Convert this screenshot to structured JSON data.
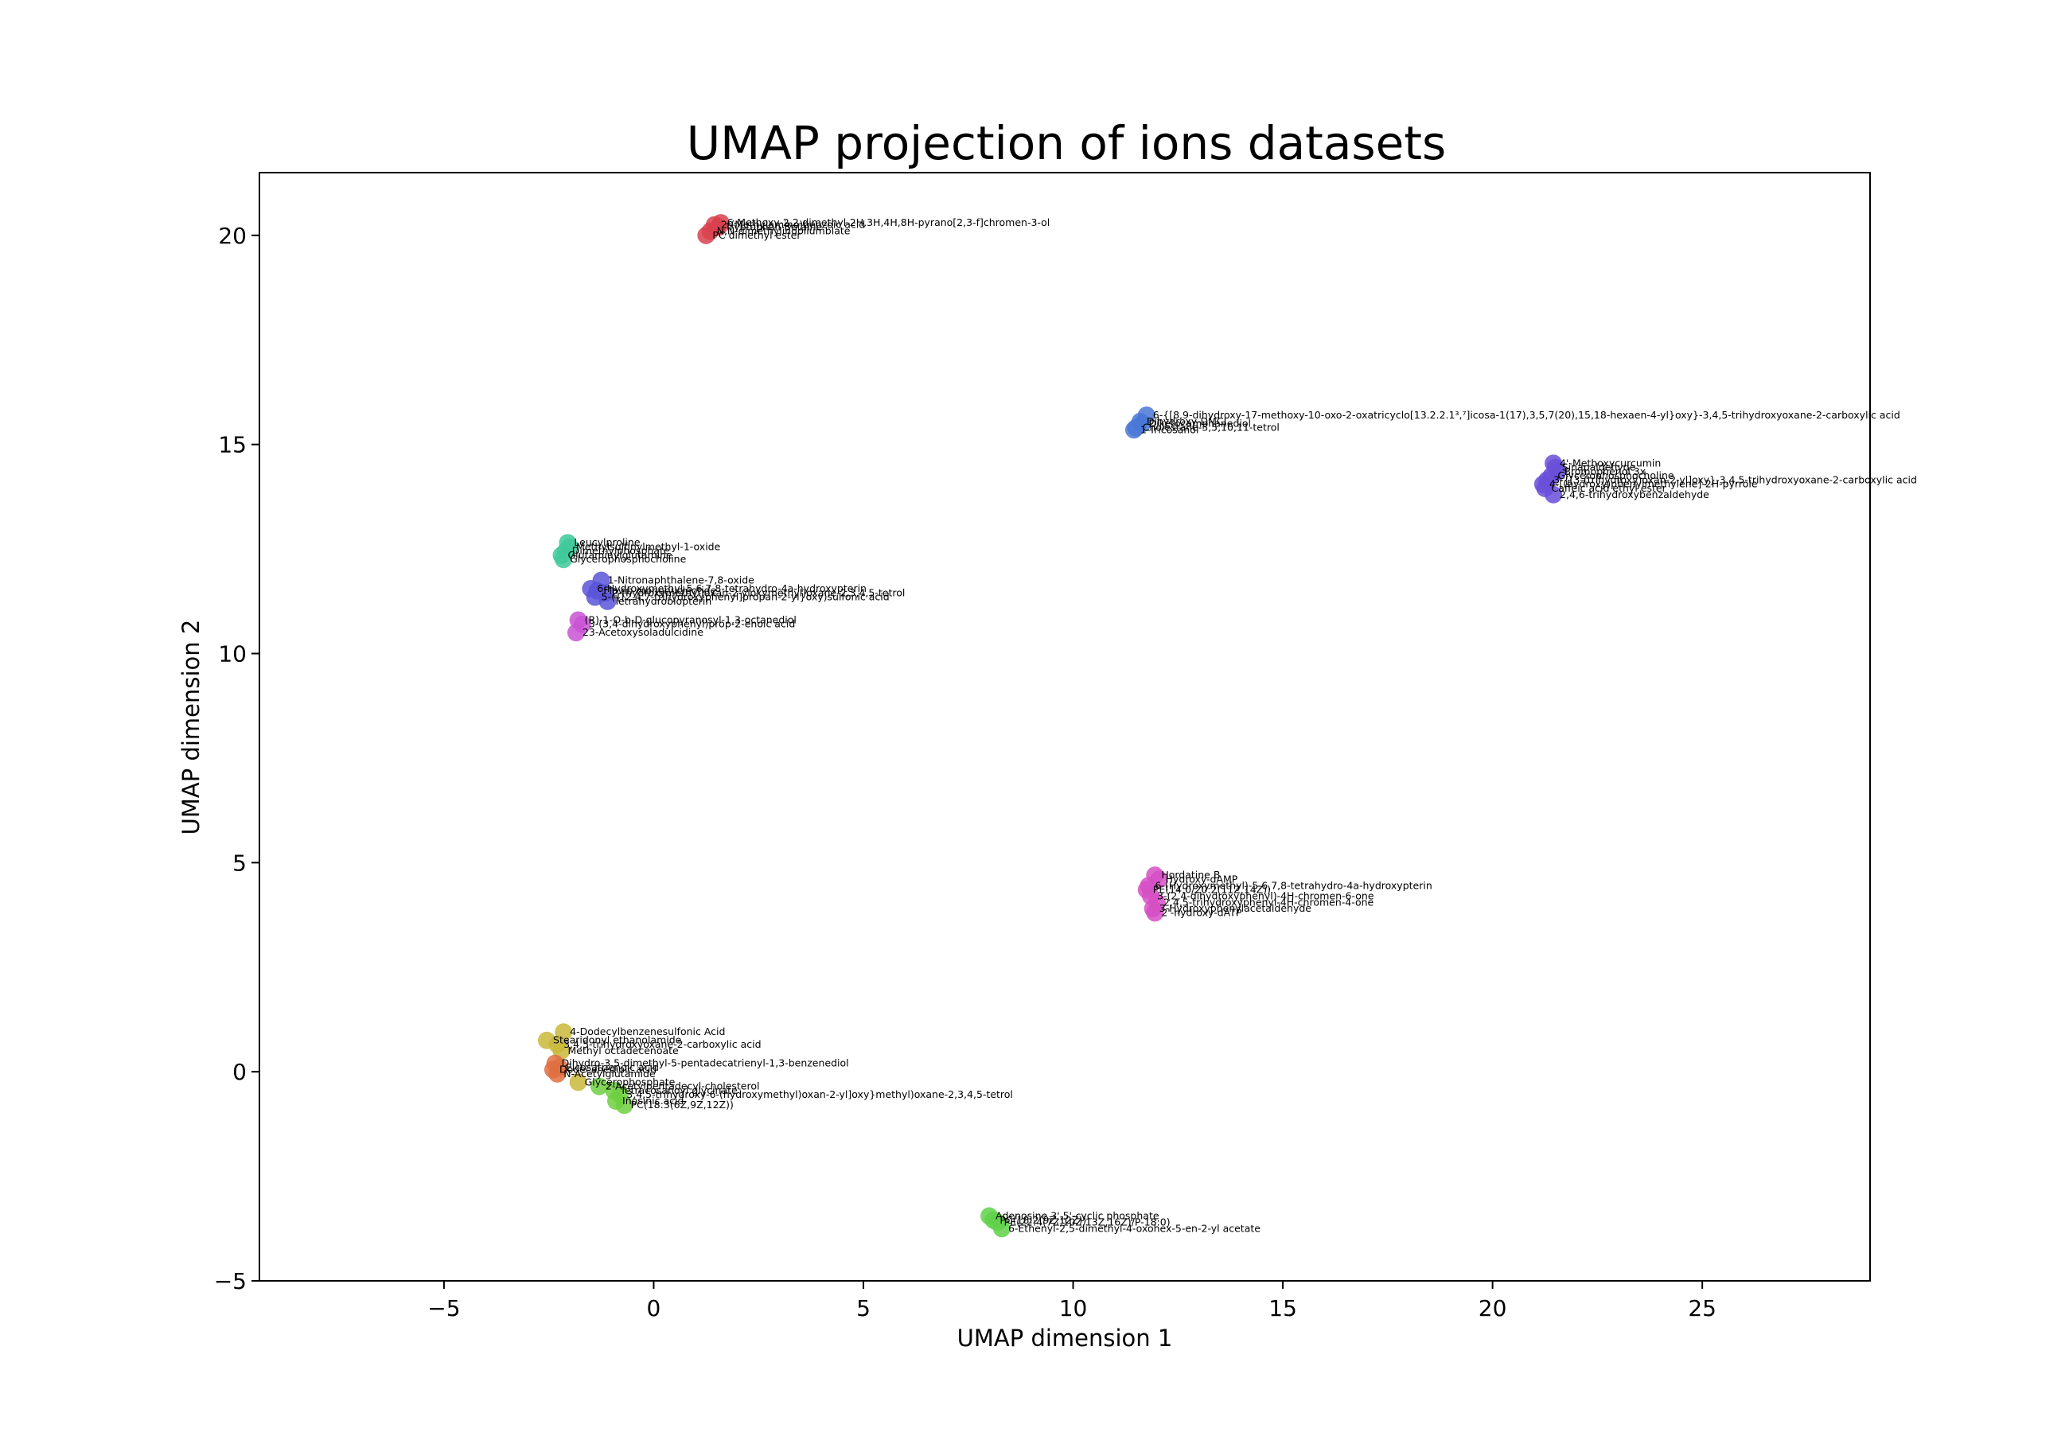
{
  "chart_data": {
    "type": "scatter",
    "title": "UMAP projection of ions datasets",
    "xlabel": "UMAP dimension 1",
    "ylabel": "UMAP dimension 2",
    "xlim": [
      -9.4,
      29.0
    ],
    "ylim": [
      -5.0,
      21.5
    ],
    "xticks": [
      -5,
      0,
      5,
      10,
      15,
      20,
      25
    ],
    "yticks": [
      -5,
      0,
      5,
      10,
      15,
      20
    ],
    "xtick_labels": [
      "−5",
      "0",
      "5",
      "10",
      "15",
      "20",
      "25"
    ],
    "ytick_labels": [
      "−5",
      "0",
      "5",
      "10",
      "15",
      "20"
    ],
    "grid": false,
    "legend": "none",
    "clusters": [
      {
        "color": "#d9414f",
        "points": [
          {
            "x": 1.45,
            "y": 20.25,
            "label": "2-(Methylamino)benzoic acid"
          },
          {
            "x": 1.55,
            "y": 20.2,
            "label": "Tryptophan Betaine"
          },
          {
            "x": 1.6,
            "y": 20.3,
            "label": "6-Methoxy-2,2-dimethyl-2H,3H,4H,8H-pyrano[2,3-f]chromen-3-ol"
          },
          {
            "x": 1.35,
            "y": 20.1,
            "label": "N,N-dimethylindoliumblate"
          },
          {
            "x": 1.25,
            "y": 20.0,
            "label": "PC dimethyl ester"
          }
        ]
      },
      {
        "color": "#4a78d6",
        "points": [
          {
            "x": 11.75,
            "y": 15.7,
            "label": "6-{[8,9-dihydroxy-17-methoxy-10-oxo-2-oxatricyclo[13.2.2.1³,⁷]icosa-1(17),3,5,7(20),15,18-hexaen-4-yl}oxy}-3,4,5-trihydroxyoxane-2-carboxylic acid"
          },
          {
            "x": 11.6,
            "y": 15.55,
            "label": "Dihydroxy-DMCI"
          },
          {
            "x": 11.65,
            "y": 15.5,
            "label": "Diketocamphanediol"
          },
          {
            "x": 11.5,
            "y": 15.4,
            "label": "Cholestane-3,5,10,11-tetrol"
          },
          {
            "x": 11.45,
            "y": 15.35,
            "label": "1-Tricosanol"
          }
        ]
      },
      {
        "color": "#6a4fd9",
        "points": [
          {
            "x": 21.45,
            "y": 14.55,
            "label": "4'-Methoxycurcumin"
          },
          {
            "x": 21.5,
            "y": 14.45,
            "label": "Sinapaldehyde"
          },
          {
            "x": 21.55,
            "y": 14.35,
            "label": "Bromophenol 3x"
          },
          {
            "x": 21.4,
            "y": 14.25,
            "label": "Glycerophosphocholine"
          },
          {
            "x": 21.3,
            "y": 14.15,
            "label": "3-{[3-(trihydroxy)oxan-2-yl]oxy}-3,4,5-trihydroxyoxane-2-carboxylic acid"
          },
          {
            "x": 21.2,
            "y": 14.05,
            "label": "4-[(hydroxy)phenylmethylene]-2H-pyrrole"
          },
          {
            "x": 21.25,
            "y": 13.95,
            "label": "Caffeic acid ethyl ester"
          },
          {
            "x": 21.45,
            "y": 13.8,
            "label": "2,4,6-trihydroxybenzaldehyde"
          }
        ]
      },
      {
        "color": "#3fc99a",
        "points": [
          {
            "x": -2.05,
            "y": 12.65,
            "label": "Leucylproline"
          },
          {
            "x": -2.0,
            "y": 12.55,
            "label": "Methylsulfinylmethyl-1-oxide"
          },
          {
            "x": -2.1,
            "y": 12.45,
            "label": "Dimethylphosphate"
          },
          {
            "x": -2.2,
            "y": 12.35,
            "label": "Glutaminylglutamine"
          },
          {
            "x": -2.15,
            "y": 12.25,
            "label": "Glycerophosphocholine"
          }
        ]
      },
      {
        "color": "#5a55d8",
        "points": [
          {
            "x": -1.25,
            "y": 11.75,
            "label": "1-Nitronaphthalene-7,8-oxide"
          },
          {
            "x": -1.5,
            "y": 11.55,
            "label": "6-Hydroxymethyl-5,6,7,8-tetrahydro-4a-hydroxypterin"
          },
          {
            "x": -1.35,
            "y": 11.5,
            "label": "Flavin mononucleotide"
          },
          {
            "x": -1.15,
            "y": 11.45,
            "label": "2-(hydroxymethyl)oxan-2-yloxymethyl)oxane-2,3,4,5-tetrol"
          },
          {
            "x": -1.4,
            "y": 11.35,
            "label": "5-({[2,4,7-trihydroxyphenyl]propan-2-yl}oxy)sulfonic acid"
          },
          {
            "x": -1.1,
            "y": 11.25,
            "label": "Tetrahydrobiopterin"
          }
        ]
      },
      {
        "color": "#c953d3",
        "points": [
          {
            "x": -1.8,
            "y": 10.8,
            "label": "(R)-1-O-b-D-glucopyranosyl-1,3-octanediol"
          },
          {
            "x": -1.7,
            "y": 10.7,
            "label": "3-(3,4-dihydroxyphenyl)prop-2-enoic acid"
          },
          {
            "x": -1.85,
            "y": 10.5,
            "label": "23-Acetoxysoladulcidine"
          }
        ]
      },
      {
        "color": "#d64fc4",
        "points": [
          {
            "x": 11.95,
            "y": 4.7,
            "label": "Hordatine B"
          },
          {
            "x": 12.05,
            "y": 4.6,
            "label": "Hydroxy-dAMP"
          },
          {
            "x": 11.8,
            "y": 4.45,
            "label": "6-(Hydroxymethyl)-5,6,7,8-tetrahydro-4a-hydroxypterin"
          },
          {
            "x": 11.75,
            "y": 4.35,
            "label": "PE(14:0/20:2(11Z,14Z))"
          },
          {
            "x": 11.85,
            "y": 4.2,
            "label": "3-(2,4-dihydroxyphenyl)-4H-chromen-6-one"
          },
          {
            "x": 12.0,
            "y": 4.05,
            "label": "2,4,5-trihydroxyphenyl-4H-chromen-4-one"
          },
          {
            "x": 11.9,
            "y": 3.9,
            "label": "3-Hydroxyphenylacetaldehyde"
          },
          {
            "x": 11.95,
            "y": 3.8,
            "label": "2'-hydroxy-dATP"
          }
        ]
      },
      {
        "color": "#c9b93a",
        "points": [
          {
            "x": -2.15,
            "y": 0.95,
            "label": "4-Dodecylbenzenesulfonic Acid"
          },
          {
            "x": -2.55,
            "y": 0.75,
            "label": "Stearidonyl ethanolamide"
          },
          {
            "x": -2.3,
            "y": 0.65,
            "label": "3,4,5-trihydroxyoxane-2-carboxylic acid"
          },
          {
            "x": -2.2,
            "y": 0.5,
            "label": "Methyl octadecenoate"
          },
          {
            "x": -1.8,
            "y": -0.25,
            "label": "Glycerophosphate"
          }
        ]
      },
      {
        "color": "#e06f41",
        "points": [
          {
            "x": -2.35,
            "y": 0.2,
            "label": "Dihydro-3,5-dimethyl-5-pentadecatrienyl-1,3-benzenediol"
          },
          {
            "x": -2.4,
            "y": 0.05,
            "label": "Dodecanedioic acid"
          },
          {
            "x": -2.3,
            "y": -0.05,
            "label": "N-Acetylglutamide"
          },
          {
            "x": -2.25,
            "y": 0.1,
            "label": "Eicosatrienoic acid"
          }
        ]
      },
      {
        "color": "#6fcf3f",
        "points": [
          {
            "x": -1.3,
            "y": -0.35,
            "label": "2-Acetylpentadecyl-cholesterol"
          },
          {
            "x": -0.95,
            "y": -0.45,
            "label": "Tetracosanoyl glycinate"
          },
          {
            "x": -0.8,
            "y": -0.55,
            "label": "3,4,5-trihydroxy-6-(hydroxymethyl)oxan-2-yl]oxy}methyl)oxane-2,3,4,5-tetrol"
          },
          {
            "x": -0.9,
            "y": -0.7,
            "label": "Inosinic acid"
          },
          {
            "x": -0.7,
            "y": -0.8,
            "label": "PC(18:3(6Z,9Z,12Z))"
          }
        ]
      },
      {
        "color": "#5fd14a",
        "points": [
          {
            "x": 8.0,
            "y": -3.45,
            "label": "Adenosine 3',5'-cyclic phosphate"
          },
          {
            "x": 8.1,
            "y": -3.55,
            "label": "PC(18:2(9Z,12Z))"
          },
          {
            "x": 8.2,
            "y": -3.6,
            "label": "PE(22:4(7Z,10Z,13Z,16Z)/P-18:0)"
          },
          {
            "x": 8.3,
            "y": -3.75,
            "label": "6-Ethenyl-2,5-dimethyl-4-oxohex-5-en-2-yl acetate"
          }
        ]
      }
    ]
  }
}
